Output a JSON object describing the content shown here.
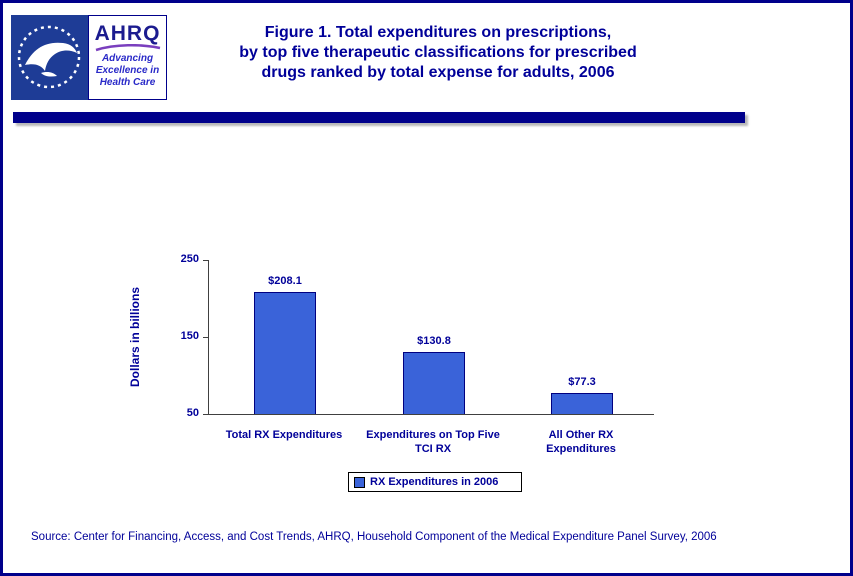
{
  "page": {
    "colors": {
      "border_navy": "#00008B",
      "text_navy": "#000099",
      "bar_blue": "#3a63d9",
      "hhs_blue": "#1e3c96"
    }
  },
  "header": {
    "title_lines": [
      "Figure 1. Total expenditures on prescriptions,",
      "by top five therapeutic classifications for prescribed",
      "drugs ranked by total expense for adults, 2006"
    ],
    "logos": {
      "hhs": "hhs-department-seal",
      "ahrq_name": "AHRQ",
      "ahrq_tagline_lines": [
        "Advancing",
        "Excellence in",
        "Health Care"
      ]
    }
  },
  "chart_data": {
    "type": "bar",
    "title": "",
    "categories": [
      "Total RX Expenditures",
      "Expenditures on Top Five TCI RX",
      "All Other RX Expenditures"
    ],
    "values": [
      208.1,
      130.8,
      77.3
    ],
    "value_labels": [
      "$208.1",
      "$130.8",
      "$77.3"
    ],
    "xlabel": "",
    "ylabel": "Dollars in billions",
    "ylim": [
      50,
      250
    ],
    "yticks": [
      50,
      150,
      250
    ],
    "grid": false,
    "legend_position": "bottom",
    "legend_entries": [
      "RX Expenditures in 2006"
    ],
    "bar_color": "#3a63d9",
    "bar_border_color": "#000080"
  },
  "source": "Source: Center for Financing, Access, and Cost Trends, AHRQ, Household Component of the Medical Expenditure Panel Survey, 2006"
}
